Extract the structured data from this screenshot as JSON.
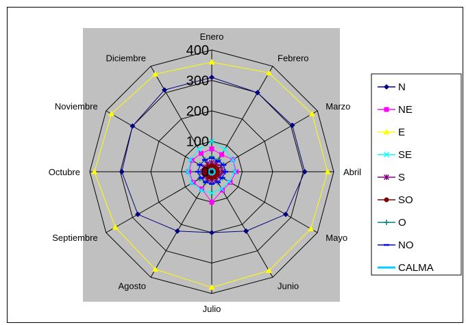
{
  "chart_data": {
    "type": "radar",
    "categories": [
      "Enero",
      "Febrero",
      "Marzo",
      "Abril",
      "Mayo",
      "Junio",
      "Julio",
      "Agosto",
      "Septiembre",
      "Octubre",
      "Noviembre",
      "Diciembre"
    ],
    "rlim": [
      0,
      400
    ],
    "ticks": [
      0,
      100,
      200,
      300,
      400
    ],
    "tick_labels": [
      "0",
      "100",
      "200",
      "300",
      "400"
    ],
    "grid": true,
    "legend_position": "right",
    "series": [
      {
        "name": "N",
        "color": "#000080",
        "marker": "diamond",
        "values": [
          310,
          300,
          305,
          305,
          280,
          225,
          200,
          225,
          280,
          295,
          300,
          310
        ]
      },
      {
        "name": "NE",
        "color": "#ff00ff",
        "marker": "square",
        "values": [
          75,
          65,
          80,
          80,
          70,
          70,
          100,
          65,
          70,
          75,
          75,
          70
        ]
      },
      {
        "name": "E",
        "color": "#ffff00",
        "marker": "triangle",
        "values": [
          360,
          375,
          380,
          380,
          375,
          375,
          380,
          370,
          365,
          385,
          380,
          370
        ]
      },
      {
        "name": "SE",
        "color": "#00ffff",
        "marker": "x",
        "values": [
          100,
          85,
          80,
          75,
          65,
          65,
          70,
          70,
          75,
          80,
          80,
          85
        ]
      },
      {
        "name": "S",
        "color": "#800080",
        "marker": "star",
        "values": [
          30,
          30,
          35,
          35,
          30,
          30,
          30,
          30,
          30,
          30,
          30,
          30
        ]
      },
      {
        "name": "SO",
        "color": "#800000",
        "marker": "circle",
        "values": [
          20,
          20,
          20,
          20,
          20,
          20,
          20,
          20,
          20,
          20,
          20,
          20
        ]
      },
      {
        "name": "O",
        "color": "#008080",
        "marker": "plus",
        "values": [
          50,
          45,
          45,
          45,
          40,
          40,
          40,
          40,
          45,
          45,
          45,
          45
        ]
      },
      {
        "name": "NO",
        "color": "#0000ff",
        "marker": "dash",
        "values": [
          45,
          40,
          45,
          45,
          40,
          40,
          40,
          40,
          40,
          45,
          45,
          45
        ]
      },
      {
        "name": "CALMA",
        "color": "#00ccff",
        "marker": "none",
        "values": [
          10,
          10,
          10,
          10,
          10,
          10,
          10,
          10,
          10,
          10,
          10,
          10
        ]
      }
    ]
  }
}
